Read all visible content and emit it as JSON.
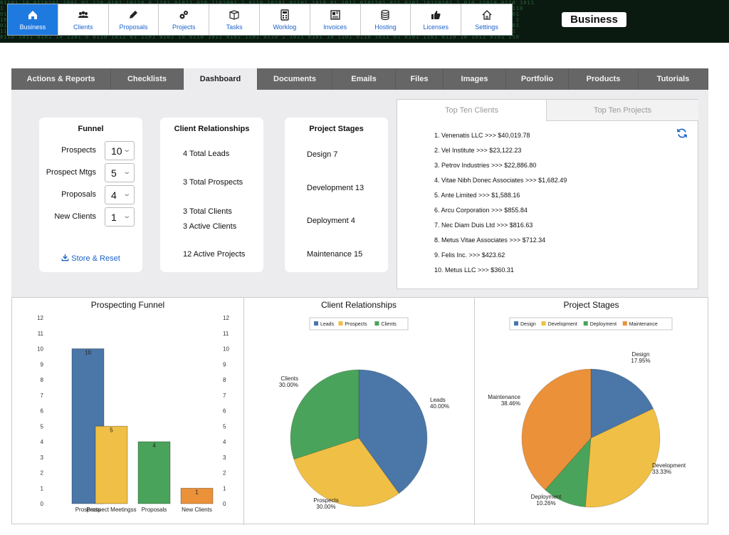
{
  "header": {
    "nav": [
      {
        "label": "Business",
        "icon": "home-icon",
        "active": true
      },
      {
        "label": "Clients",
        "icon": "people-icon"
      },
      {
        "label": "Proposals",
        "icon": "pencil-icon"
      },
      {
        "label": "Projects",
        "icon": "gears-icon"
      },
      {
        "label": "Tasks",
        "icon": "box-icon"
      },
      {
        "label": "Worklog",
        "icon": "calculator-icon"
      },
      {
        "label": "Invoices",
        "icon": "newspaper-icon"
      },
      {
        "label": "Hosting",
        "icon": "database-icon"
      },
      {
        "label": "Licenses",
        "icon": "thumbs-up-icon"
      },
      {
        "label": "Settings",
        "icon": "house-outline-icon"
      }
    ],
    "brand": "Business"
  },
  "tabs": [
    {
      "label": "Actions & Reports"
    },
    {
      "label": "Checklists"
    },
    {
      "label": "Dashboard",
      "active": true
    },
    {
      "label": "Documents"
    },
    {
      "label": "Emails"
    },
    {
      "label": "Files"
    },
    {
      "label": "Images"
    },
    {
      "label": "Portfolio"
    },
    {
      "label": "Products"
    },
    {
      "label": "Tutorials"
    }
  ],
  "funnel": {
    "title": "Funnel",
    "rows": [
      {
        "label": "Prospects",
        "value": "10"
      },
      {
        "label": "Prospect Mtgs",
        "value": "5"
      },
      {
        "label": "Proposals",
        "value": "4"
      },
      {
        "label": "New Clients",
        "value": "1"
      }
    ],
    "store_label": "Store & Reset"
  },
  "client_relationships": {
    "title": "Client Relationships",
    "lines": [
      "4 Total Leads",
      "3 Total Prospects",
      "3 Total Clients",
      "3 Active Clients",
      "12 Active Projects"
    ]
  },
  "project_stages": {
    "title": "Project Stages",
    "lines": [
      "Design 7",
      "Development 13",
      "Deployment 4",
      "Maintenance 15"
    ]
  },
  "top_ten": {
    "tabs": [
      "Top Ten Clients",
      "Top Ten Projects"
    ],
    "items": [
      "1. Venenatis LLC >>>  $40,019.78",
      "2. Vel Institute >>>  $23,122.23",
      "3. Petrov Industries >>>  $22,886.80",
      "4. Vitae Nibh Donec Associates >>>  $1,682.49",
      "5. Ante Limited >>>  $1,588.16",
      "6. Arcu Corporation >>>  $855.84",
      "7. Nec Diam Duis Ltd >>>  $816.63",
      "8. Metus Vitae Associates >>>  $712.34",
      "9. Felis Inc. >>>  $423.62",
      "10. Metus LLC >>>  $360.31"
    ]
  },
  "chart_data": [
    {
      "type": "bar",
      "title": "Prospecting Funnel",
      "categories": [
        "Prospects",
        "Prospect Meetingss",
        "Proposals",
        "New Clients"
      ],
      "values": [
        10,
        5,
        4,
        1
      ],
      "colors": [
        "#4a76a8",
        "#f0bf45",
        "#4aa35a",
        "#eb9139"
      ],
      "ylim": [
        0,
        12
      ],
      "yticks": [
        0,
        1,
        2,
        3,
        4,
        5,
        6,
        7,
        8,
        9,
        10,
        11,
        12
      ],
      "xlabel": "",
      "ylabel": ""
    },
    {
      "type": "pie",
      "title": "Client Relationships",
      "legend": "top",
      "slices": [
        {
          "label": "Leads",
          "value": 40.0,
          "display": "40.00%",
          "color": "#4a76a8"
        },
        {
          "label": "Prospects",
          "value": 30.0,
          "display": "30.00%",
          "color": "#f0bf45"
        },
        {
          "label": "Clients",
          "value": 30.0,
          "display": "30.00%",
          "color": "#4aa35a"
        }
      ]
    },
    {
      "type": "pie",
      "title": "Project Stages",
      "legend": "top",
      "slices": [
        {
          "label": "Design",
          "value": 17.95,
          "display": "17.95%",
          "color": "#4a76a8"
        },
        {
          "label": "Development",
          "value": 33.33,
          "display": "33.33%",
          "color": "#f0bf45"
        },
        {
          "label": "Deployment",
          "value": 10.26,
          "display": "10.26%",
          "color": "#4aa35a"
        },
        {
          "label": "Maintenance",
          "value": 38.46,
          "display": "38.46%",
          "color": "#eb9139"
        }
      ]
    }
  ]
}
